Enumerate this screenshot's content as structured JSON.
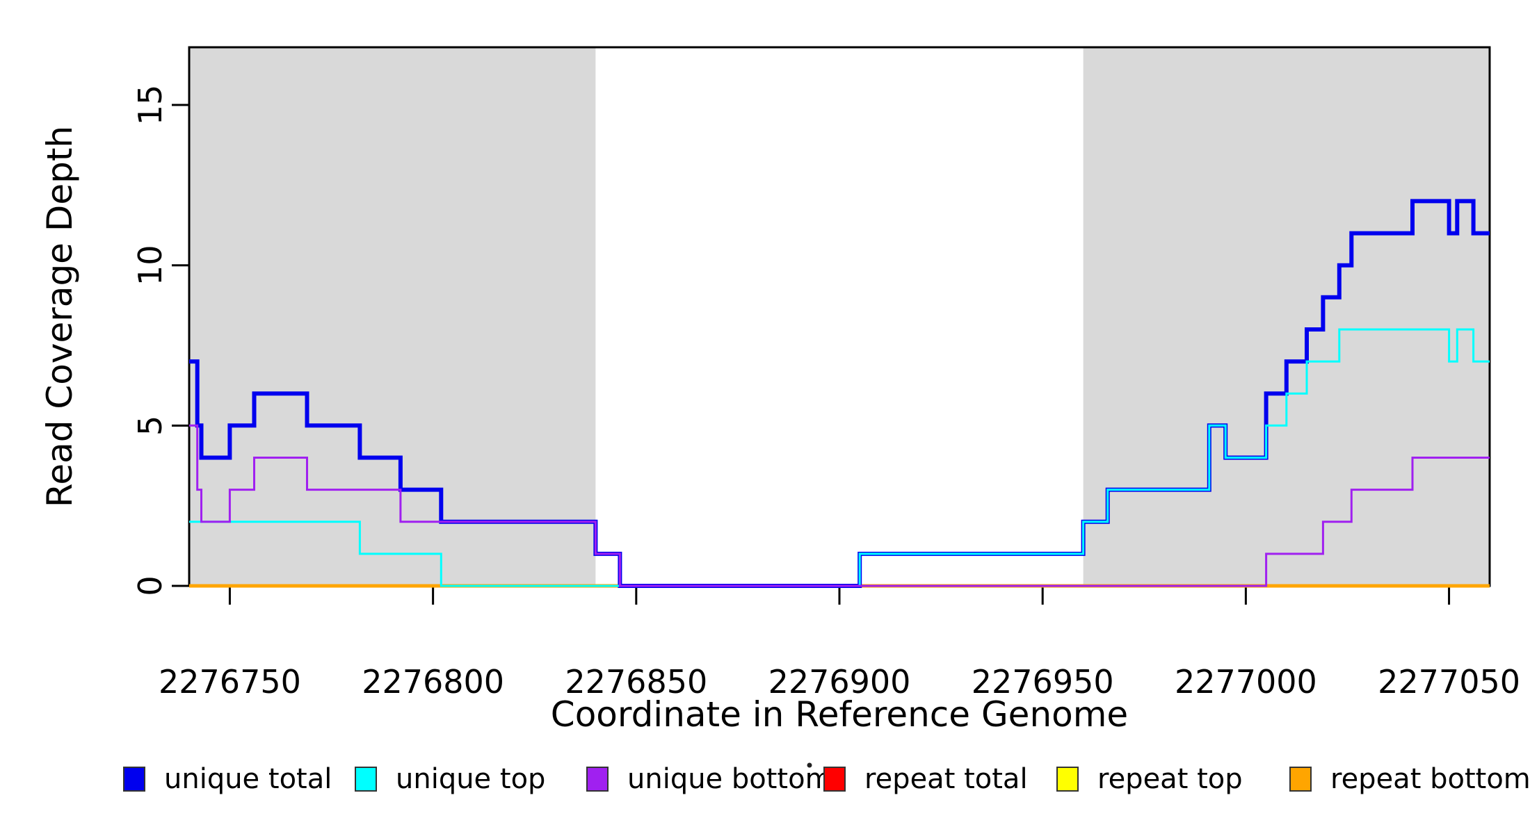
{
  "figure_title": "",
  "chart_data": {
    "type": "line",
    "subtype": "step-coverage",
    "title": "",
    "xlabel": "Coordinate in Reference Genome",
    "ylabel": "Read Coverage Depth",
    "xlim": [
      2276740,
      2277060
    ],
    "ylim": [
      0,
      16.8
    ],
    "xticks": [
      2276750,
      2276800,
      2276850,
      2276900,
      2276950,
      2277000,
      2277050
    ],
    "xtick_labels": [
      "2276750",
      "2276800",
      "2276850",
      "2276900",
      "2276950",
      "2277000",
      "2277050"
    ],
    "yticks": [
      0,
      5,
      10,
      15
    ],
    "ytick_labels": [
      "0",
      "5",
      "10",
      "15"
    ],
    "ytick_label_rotation_deg": 90,
    "grid": false,
    "legend_position": "bottom",
    "plot_background": "#FFFFFF",
    "highlight_color": "#D9D9D9",
    "highlight_regions": [
      [
        2276740,
        2276840
      ],
      [
        2276960,
        2277060
      ]
    ],
    "series": [
      {
        "name": "unique total",
        "color": "#0000EE",
        "line_width": 6,
        "draw_order": 4,
        "steps": [
          [
            2276740,
            2276742,
            7
          ],
          [
            2276742,
            2276743,
            5
          ],
          [
            2276743,
            2276750,
            4
          ],
          [
            2276750,
            2276756,
            5
          ],
          [
            2276756,
            2276769,
            6
          ],
          [
            2276769,
            2276782,
            5
          ],
          [
            2276782,
            2276792,
            4
          ],
          [
            2276792,
            2276802,
            3
          ],
          [
            2276802,
            2276840,
            2
          ],
          [
            2276840,
            2276846,
            1
          ],
          [
            2276846,
            2276905,
            0
          ],
          [
            2276905,
            2276960,
            1
          ],
          [
            2276960,
            2276966,
            2
          ],
          [
            2276966,
            2276991,
            3
          ],
          [
            2276991,
            2276995,
            5
          ],
          [
            2276995,
            2277005,
            4
          ],
          [
            2277005,
            2277010,
            6
          ],
          [
            2277010,
            2277015,
            7
          ],
          [
            2277015,
            2277019,
            8
          ],
          [
            2277019,
            2277023,
            9
          ],
          [
            2277023,
            2277026,
            10
          ],
          [
            2277026,
            2277041,
            11
          ],
          [
            2277041,
            2277050,
            12
          ],
          [
            2277050,
            2277052,
            11
          ],
          [
            2277052,
            2277056,
            12
          ],
          [
            2277056,
            2277060,
            11
          ]
        ]
      },
      {
        "name": "unique top",
        "color": "#00FFFF",
        "line_width": 3,
        "draw_order": 5,
        "steps": [
          [
            2276740,
            2276782,
            2
          ],
          [
            2276782,
            2276802,
            1
          ],
          [
            2276802,
            2276905,
            0
          ],
          [
            2276905,
            2276960,
            1
          ],
          [
            2276960,
            2276966,
            2
          ],
          [
            2276966,
            2276991,
            3
          ],
          [
            2276991,
            2276995,
            5
          ],
          [
            2276995,
            2277005,
            4
          ],
          [
            2277005,
            2277010,
            5
          ],
          [
            2277010,
            2277015,
            6
          ],
          [
            2277015,
            2277023,
            7
          ],
          [
            2277023,
            2277050,
            8
          ],
          [
            2277050,
            2277052,
            7
          ],
          [
            2277052,
            2277056,
            8
          ],
          [
            2277056,
            2277060,
            7
          ]
        ]
      },
      {
        "name": "unique bottom",
        "color": "#A020F0",
        "line_width": 3,
        "draw_order": 6,
        "steps": [
          [
            2276740,
            2276742,
            5
          ],
          [
            2276742,
            2276743,
            3
          ],
          [
            2276743,
            2276750,
            2
          ],
          [
            2276750,
            2276756,
            3
          ],
          [
            2276756,
            2276769,
            4
          ],
          [
            2276769,
            2276792,
            3
          ],
          [
            2276792,
            2276840,
            2
          ],
          [
            2276840,
            2276846,
            1
          ],
          [
            2276846,
            2277005,
            0
          ],
          [
            2277005,
            2277019,
            1
          ],
          [
            2277019,
            2277026,
            2
          ],
          [
            2277026,
            2277041,
            3
          ],
          [
            2277041,
            2277060,
            4
          ]
        ]
      },
      {
        "name": "repeat total",
        "color": "#FF0000",
        "line_width": 4,
        "draw_order": 1,
        "steps": [
          [
            2276740,
            2277060,
            0
          ]
        ]
      },
      {
        "name": "repeat top",
        "color": "#FFFF00",
        "line_width": 3,
        "draw_order": 2,
        "steps": [
          [
            2276740,
            2277060,
            0
          ]
        ]
      },
      {
        "name": "repeat bottom",
        "color": "#FFA500",
        "line_width": 5,
        "draw_order": 3,
        "steps": [
          [
            2276740,
            2277060,
            0
          ]
        ]
      }
    ]
  },
  "legend": {
    "marker_border_color": "#333333",
    "stray_dot": "·"
  }
}
